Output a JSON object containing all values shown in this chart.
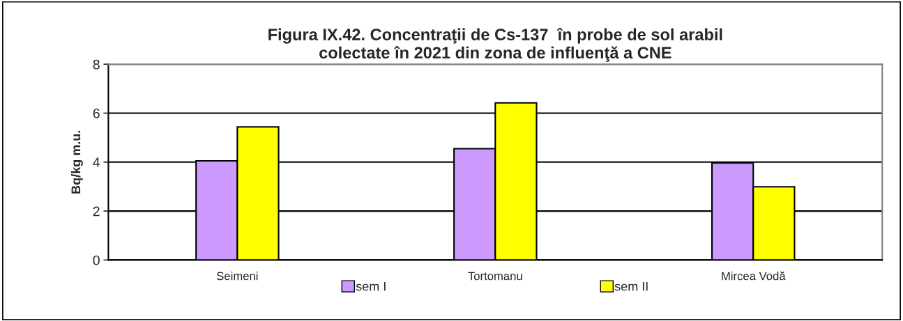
{
  "chart_data": {
    "type": "bar",
    "title": "Figura IX.42. Concentraţii de Cs-137  în probe de sol arabil\ncolectate în 2021 din zona de influenţă a CNE",
    "ylabel": "Bq/kg m.u.",
    "categories": [
      "Seimeni",
      "Tortomanu",
      "Mircea Vodă"
    ],
    "series": [
      {
        "name": "sem I",
        "color": "#cc99ff",
        "values": [
          4.05,
          4.55,
          3.97
        ]
      },
      {
        "name": "sem II",
        "color": "#ffff00",
        "values": [
          5.44,
          6.42,
          2.99
        ]
      }
    ],
    "ylim": [
      0,
      8
    ],
    "yticks": [
      0,
      2,
      4,
      6,
      8
    ],
    "grid": "y",
    "legend": "bottom"
  }
}
